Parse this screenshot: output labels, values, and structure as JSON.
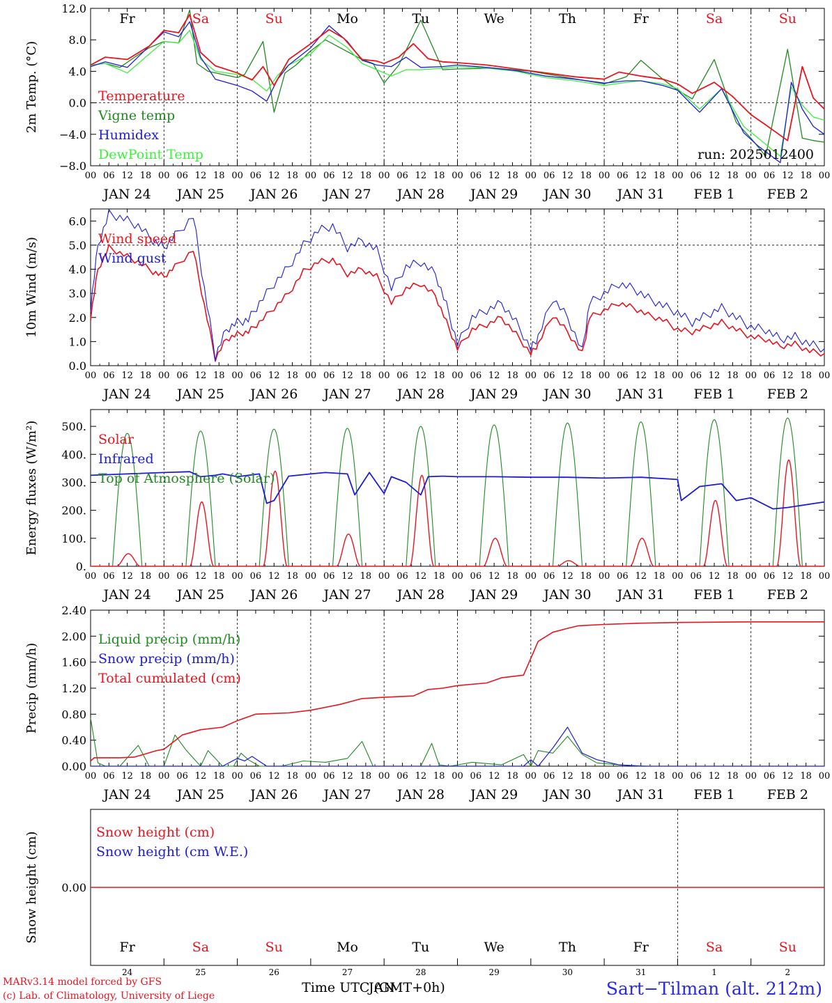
{
  "x_axis": {
    "hour_ticks": [
      "00",
      "06",
      "12",
      "18"
    ],
    "dates": [
      "JAN 24",
      "JAN 25",
      "JAN 26",
      "JAN 27",
      "JAN 28",
      "JAN 29",
      "JAN 30",
      "JAN 31",
      "FEB  1",
      "FEB  2"
    ],
    "day_names": [
      "Fr",
      "Sa",
      "Su",
      "Mo",
      "Tu",
      "We",
      "Th",
      "Fr",
      "Sa",
      "Su"
    ],
    "weekend_days": [
      1,
      2,
      8,
      9
    ],
    "day_numbers": [
      "24",
      "25",
      "26",
      "27",
      "28",
      "29",
      "30",
      "31",
      "1",
      "2"
    ],
    "days": 10
  },
  "colors": {
    "red": "#e8141e",
    "green": "#1f8a1f",
    "blue": "#1c1cd8",
    "lightgreen": "#3cf03c",
    "frame": "#000000"
  },
  "chart_data": [
    {
      "type": "line",
      "ylabel": "2m Temp. (°C)",
      "ylim": [
        -8,
        12
      ],
      "yticks": [
        "12.0",
        "8.0",
        "4.0",
        "0.0",
        "−4.0",
        "−8.0"
      ],
      "ytick_values": [
        12,
        8,
        4,
        0,
        -4,
        -8
      ],
      "zero_line": 0,
      "legend": [
        "Temperature",
        "Vigne temp",
        "Humidex",
        "DewPoint Temp"
      ],
      "run_label": "run: 2025012400",
      "series": [
        {
          "name": "Temperature",
          "color": "red",
          "x": [
            0,
            0.2,
            0.5,
            0.8,
            1,
            1.2,
            1.35,
            1.5,
            1.7,
            2,
            2.2,
            2.35,
            2.5,
            2.7,
            3,
            3.25,
            3.45,
            3.7,
            3.9,
            4,
            4.2,
            4.4,
            4.6,
            4.8,
            5,
            5.4,
            5.8,
            6.2,
            6.6,
            7,
            7.2,
            7.5,
            7.8,
            8,
            8.2,
            8.5,
            8.75,
            9,
            9.2,
            9.5,
            9.7,
            9.85,
            10
          ],
          "y": [
            4.8,
            5.8,
            5.5,
            7.2,
            9.2,
            8.9,
            11.2,
            6.4,
            4.7,
            3.8,
            2.9,
            4.6,
            2.2,
            5.5,
            7.5,
            9.3,
            8.2,
            5.5,
            5.3,
            5.0,
            5.8,
            7.5,
            5.6,
            5.2,
            5.1,
            4.8,
            4.3,
            3.8,
            3.3,
            3.0,
            3.9,
            3.4,
            3.0,
            2.4,
            1.2,
            2.6,
            0.8,
            -1.5,
            -2.8,
            -4.8,
            4.6,
            0.6,
            -0.8
          ]
        },
        {
          "name": "Vigne temp",
          "color": "green",
          "x": [
            0,
            0.2,
            0.4,
            0.6,
            0.8,
            1,
            1.2,
            1.35,
            1.45,
            1.6,
            1.8,
            2,
            2.1,
            2.35,
            2.5,
            2.65,
            2.8,
            3,
            3.2,
            3.5,
            3.7,
            3.85,
            4,
            4.2,
            4.5,
            4.8,
            5,
            5.5,
            6,
            6.5,
            7,
            7.3,
            7.5,
            7.8,
            8,
            8.2,
            8.5,
            8.8,
            9,
            9.2,
            9.5,
            9.7,
            9.85,
            10
          ],
          "y": [
            4.8,
            5.0,
            4.5,
            5.8,
            7.0,
            7.8,
            7.6,
            11.8,
            5.0,
            4.0,
            3.6,
            3.2,
            3.6,
            7.8,
            -1.2,
            3.8,
            4.8,
            6.6,
            8.0,
            6.5,
            5.5,
            5.0,
            2.5,
            4.8,
            10.5,
            4.2,
            4.3,
            4.4,
            4.0,
            3.2,
            2.4,
            3.3,
            5.4,
            3.0,
            1.6,
            0.5,
            5.5,
            -2.5,
            -4.5,
            -6.8,
            6.8,
            -4.5,
            -4.8,
            -5.0
          ]
        },
        {
          "name": "Humidex",
          "color": "blue",
          "x": [
            0,
            0.2,
            0.5,
            0.8,
            1,
            1.2,
            1.35,
            1.5,
            1.7,
            2,
            2.2,
            2.4,
            2.55,
            2.7,
            3,
            3.25,
            3.5,
            3.7,
            3.9,
            4.1,
            4.3,
            4.5,
            4.8,
            5,
            5.4,
            5.8,
            6.2,
            6.6,
            7,
            7.3,
            7.5,
            7.8,
            8,
            8.3,
            8.6,
            8.9,
            9.1,
            9.4,
            9.55,
            9.7,
            9.85,
            10
          ],
          "y": [
            4.6,
            5.2,
            4.5,
            7.2,
            9.0,
            8.4,
            10.3,
            5.8,
            3.0,
            2.2,
            1.5,
            0.2,
            3.0,
            4.8,
            7.0,
            9.8,
            7.8,
            5.4,
            4.8,
            4.6,
            5.8,
            4.5,
            4.6,
            4.8,
            4.5,
            4.1,
            3.4,
            3.0,
            2.5,
            2.8,
            2.8,
            2.2,
            1.6,
            -1.2,
            1.8,
            -3.8,
            -5.5,
            -7.6,
            2.6,
            -0.8,
            -3.0,
            -4.0
          ]
        },
        {
          "name": "DewPoint Temp",
          "color": "lightgreen",
          "x": [
            0,
            0.2,
            0.5,
            0.8,
            1,
            1.2,
            1.35,
            1.5,
            1.7,
            2,
            2.2,
            2.4,
            2.55,
            2.7,
            3,
            3.25,
            3.5,
            3.7,
            3.9,
            4.1,
            4.3,
            4.5,
            4.8,
            5,
            5.4,
            5.8,
            6.2,
            6.6,
            7,
            7.3,
            7.5,
            7.8,
            8,
            8.3,
            8.6,
            8.9,
            9.1,
            9.4,
            9.55,
            9.7,
            9.85,
            10
          ],
          "y": [
            4.8,
            5.0,
            3.8,
            6.2,
            7.8,
            7.6,
            9.2,
            5.5,
            4.0,
            3.6,
            3.0,
            1.5,
            3.5,
            4.8,
            6.2,
            8.6,
            7.0,
            5.0,
            4.2,
            3.4,
            4.2,
            4.2,
            4.4,
            4.6,
            4.4,
            4.0,
            3.2,
            2.8,
            2.2,
            2.6,
            2.8,
            2.4,
            1.8,
            -0.8,
            1.8,
            -3.0,
            -4.5,
            -6.8,
            2.0,
            -0.3,
            -1.8,
            -2.2
          ]
        }
      ]
    },
    {
      "type": "line",
      "ylabel": "10m Wind (m/s)",
      "ylim": [
        0,
        6.5
      ],
      "yticks": [
        "6.0",
        "5.0",
        "4.0",
        "3.0",
        "2.0",
        "1.0",
        "0.0"
      ],
      "ytick_values": [
        6,
        5,
        4,
        3,
        2,
        1,
        0
      ],
      "ref_line": 5,
      "legend": [
        "Wind speed",
        "Wind gust"
      ],
      "series": [
        {
          "name": "Wind speed",
          "color": "red",
          "x": [
            0,
            0.1,
            0.25,
            0.45,
            0.65,
            0.85,
            1,
            1.15,
            1.4,
            1.55,
            1.7,
            1.85,
            2,
            2.15,
            2.3,
            2.5,
            2.7,
            2.9,
            3.1,
            3.3,
            3.5,
            3.7,
            3.9,
            4.1,
            4.3,
            4.5,
            4.7,
            4.85,
            5,
            5.2,
            5.4,
            5.6,
            5.8,
            6,
            6.1,
            6.3,
            6.5,
            6.7,
            6.8,
            7,
            7.2,
            7.4,
            7.6,
            7.8,
            8,
            8.2,
            8.4,
            8.6,
            8.8,
            9,
            9.2,
            9.4,
            9.6,
            9.8,
            10
          ],
          "y": [
            2.0,
            4.0,
            4.9,
            4.6,
            4.3,
            3.9,
            3.7,
            4.1,
            4.8,
            2.5,
            0.3,
            1.1,
            1.3,
            1.4,
            1.8,
            2.4,
            3.0,
            3.9,
            4.3,
            4.4,
            3.8,
            4.0,
            3.7,
            2.6,
            3.2,
            3.4,
            2.9,
            1.8,
            0.7,
            1.5,
            1.7,
            2.0,
            1.3,
            0.5,
            0.9,
            2.1,
            1.4,
            0.5,
            2.0,
            2.3,
            2.6,
            2.4,
            2.1,
            1.9,
            1.5,
            1.4,
            1.6,
            1.8,
            1.5,
            1.2,
            1.1,
            0.8,
            0.9,
            0.6,
            0.5
          ]
        },
        {
          "name": "Wind gust",
          "color": "blue",
          "x": [
            0,
            0.1,
            0.25,
            0.45,
            0.65,
            0.85,
            1,
            1.15,
            1.4,
            1.55,
            1.7,
            1.85,
            2,
            2.15,
            2.3,
            2.5,
            2.7,
            2.9,
            3.1,
            3.3,
            3.5,
            3.7,
            3.9,
            4.1,
            4.3,
            4.5,
            4.7,
            4.85,
            5,
            5.2,
            5.4,
            5.6,
            5.8,
            6,
            6.1,
            6.3,
            6.5,
            6.7,
            6.8,
            7,
            7.2,
            7.4,
            7.6,
            7.8,
            8,
            8.2,
            8.4,
            8.6,
            8.8,
            9,
            9.2,
            9.4,
            9.6,
            9.8,
            10
          ],
          "y": [
            2.4,
            5.0,
            6.3,
            6.1,
            5.8,
            5.2,
            4.9,
            5.4,
            6.2,
            3.2,
            0.4,
            1.5,
            1.8,
            1.9,
            2.6,
            3.4,
            4.1,
            5.0,
            5.6,
            5.8,
            4.9,
            5.2,
            4.8,
            3.2,
            4.1,
            4.3,
            3.8,
            2.5,
            0.9,
            2.0,
            2.3,
            2.6,
            1.8,
            0.7,
            1.2,
            2.8,
            2.0,
            0.6,
            2.6,
            3.0,
            3.4,
            3.2,
            2.8,
            2.5,
            2.2,
            1.8,
            2.1,
            2.4,
            2.0,
            1.6,
            1.5,
            1.1,
            1.2,
            0.9,
            0.7
          ]
        }
      ]
    },
    {
      "type": "line",
      "ylabel": "Energy fluxes (W/m²)",
      "ylim": [
        0,
        560
      ],
      "yticks": [
        "500.",
        "400.",
        "300.",
        "200.",
        "100.",
        "0."
      ],
      "ytick_values": [
        500,
        400,
        300,
        200,
        100,
        0
      ],
      "legend": [
        "Solar",
        "Infrared",
        "Top of Atmosphere (Solar)"
      ],
      "toa_peaks": [
        475,
        483,
        490,
        493,
        500,
        505,
        512,
        516,
        524,
        530
      ],
      "solar_peaks": [
        45,
        230,
        340,
        115,
        325,
        100,
        20,
        100,
        235,
        380
      ],
      "infrared": {
        "x": [
          0,
          0.5,
          1,
          1.35,
          1.5,
          1.7,
          1.8,
          2,
          2.3,
          2.4,
          2.5,
          2.7,
          3,
          3.2,
          3.5,
          3.6,
          3.8,
          4,
          4.1,
          4.3,
          4.5,
          4.6,
          4.8,
          5,
          5.5,
          6,
          6.5,
          7,
          7.5,
          8,
          8.05,
          8.3,
          8.6,
          8.8,
          9,
          9.3,
          9.5,
          10
        ],
        "y": [
          325,
          330,
          335,
          338,
          320,
          325,
          330,
          320,
          330,
          225,
          235,
          322,
          330,
          335,
          330,
          255,
          335,
          260,
          320,
          300,
          255,
          320,
          322,
          320,
          320,
          318,
          318,
          315,
          318,
          310,
          235,
          285,
          295,
          235,
          245,
          205,
          210,
          230
        ]
      }
    },
    {
      "type": "line",
      "ylabel": "Precip (mm/h)",
      "ylim": [
        0,
        2.4
      ],
      "yticks": [
        "2.40",
        "2.00",
        "1.60",
        "1.20",
        "0.80",
        "0.40",
        "0.00"
      ],
      "ytick_values": [
        2.4,
        2.0,
        1.6,
        1.2,
        0.8,
        0.4,
        0.0
      ],
      "legend": [
        "Liquid precip (mm/h)",
        "Snow precip (mm/h)",
        "Total cumulated (cm)"
      ],
      "cumulated": {
        "x": [
          0,
          0.05,
          0.4,
          0.6,
          0.9,
          1.0,
          1.25,
          1.5,
          1.8,
          2.0,
          2.25,
          2.7,
          3.0,
          3.4,
          3.7,
          4.0,
          4.4,
          4.6,
          4.8,
          5.0,
          5.4,
          5.6,
          5.9,
          6.1,
          6.3,
          6.5,
          6.65,
          7.0,
          7.5,
          8.0,
          9.0,
          10
        ],
        "y": [
          0.08,
          0.13,
          0.13,
          0.14,
          0.24,
          0.26,
          0.48,
          0.56,
          0.6,
          0.7,
          0.8,
          0.82,
          0.86,
          0.95,
          1.04,
          1.06,
          1.08,
          1.18,
          1.2,
          1.24,
          1.28,
          1.36,
          1.4,
          1.92,
          2.06,
          2.12,
          2.16,
          2.18,
          2.2,
          2.21,
          2.22,
          2.22
        ]
      },
      "liquid": {
        "x": [
          0,
          0.1,
          0.2,
          0.4,
          0.65,
          0.8,
          1,
          1.15,
          1.3,
          1.5,
          1.6,
          1.8,
          1.95,
          2.05,
          2.15,
          2.3,
          2.6,
          2.9,
          3.2,
          3.5,
          3.7,
          3.85,
          4,
          4.5,
          4.65,
          4.75,
          4.9,
          5.2,
          5.6,
          5.9,
          6.0,
          6.1,
          6.3,
          6.5,
          6.7,
          6.9,
          7.2,
          7.6,
          8,
          9,
          10
        ],
        "y": [
          0.74,
          0.05,
          0.0,
          0.0,
          0.32,
          0.0,
          0.0,
          0.48,
          0.25,
          0.0,
          0.24,
          0.0,
          0.0,
          0.2,
          0.1,
          0.0,
          0.0,
          0.08,
          0.06,
          0.12,
          0.38,
          0.0,
          0.0,
          0.0,
          0.35,
          0.02,
          0.0,
          0.06,
          0.02,
          0.18,
          0.0,
          0.24,
          0.2,
          0.46,
          0.18,
          0.05,
          0.02,
          0.0,
          0.0,
          0.0,
          0.0
        ]
      },
      "snow": {
        "x": [
          0,
          1.8,
          2.0,
          2.1,
          2.2,
          2.4,
          5.9,
          6.0,
          6.1,
          6.3,
          6.5,
          6.7,
          6.9,
          7.2,
          7.5,
          10
        ],
        "y": [
          0,
          0,
          0.12,
          0.08,
          0.15,
          0,
          0,
          0.1,
          0,
          0.28,
          0.6,
          0.2,
          0.1,
          0.02,
          0,
          0
        ]
      }
    },
    {
      "type": "line",
      "ylabel": "Snow height (cm)",
      "ylim": [
        -1,
        1
      ],
      "yticks": [
        "0.00"
      ],
      "ytick_values": [
        0
      ],
      "legend": [
        "Snow height (cm)",
        "Snow height (cm W.E.)"
      ],
      "series": [
        {
          "name": "Snow height (cm)",
          "color": "red",
          "x": [
            0,
            10
          ],
          "y": [
            0,
            0
          ]
        }
      ]
    }
  ],
  "footer": {
    "credit_line1": "MARv3.14 model forced by GFS",
    "credit_line2": "(c) Lab. of Climatology, University of Liege",
    "time_label": "Time UTC (GMT+0h)",
    "time_overlap": "JAN",
    "station": "Sart−Tilman (alt. 212m)"
  }
}
